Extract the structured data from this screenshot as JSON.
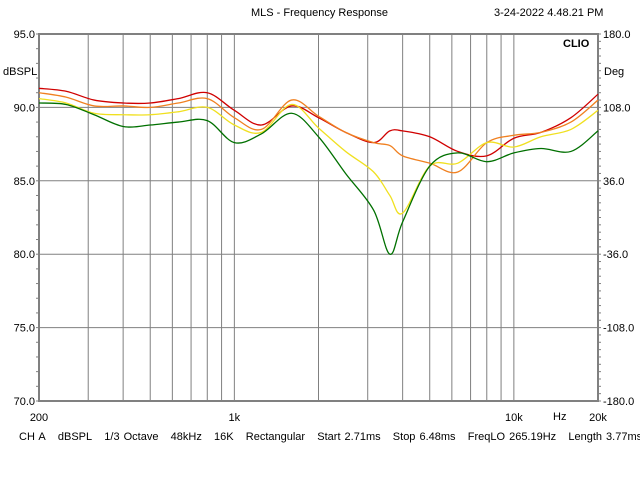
{
  "chart_data": {
    "type": "line",
    "title": "MLS - Frequency Response",
    "timestamp": "3-24-2022 4.48.21 PM",
    "brand": "CLIO",
    "xlabel": "Hz",
    "ylabel": "dBSPL",
    "ylabel_right": "Deg",
    "x_scale": "log",
    "xlim": [
      200,
      20000
    ],
    "ylim": [
      70,
      95
    ],
    "ylim_right": [
      -180,
      180
    ],
    "grid": true,
    "x_tick_labels": [
      {
        "value": 200,
        "label": "200"
      },
      {
        "value": 1000,
        "label": "1k"
      },
      {
        "value": 10000,
        "label": "10k"
      },
      {
        "value": 20000,
        "label": "20k"
      }
    ],
    "y_tick_labels": [
      "95.0",
      "90.0",
      "85.0",
      "80.0",
      "75.0",
      "70.0"
    ],
    "y_tick_values": [
      95,
      90,
      85,
      80,
      75,
      70
    ],
    "y_right_tick_labels": [
      "180.0",
      "108.0",
      "36.0",
      "-36.0",
      "-108.0",
      "-180.0"
    ],
    "x": [
      200,
      250,
      315,
      400,
      500,
      630,
      800,
      1000,
      1250,
      1600,
      2000,
      2500,
      3150,
      3600,
      4000,
      5000,
      6300,
      8000,
      10000,
      12500,
      16000,
      20000
    ],
    "series": [
      {
        "name": "red",
        "color": "#d00000",
        "values": [
          91.3,
          91.1,
          90.5,
          90.3,
          90.3,
          90.6,
          91.0,
          89.8,
          88.8,
          90.1,
          89.3,
          88.3,
          87.6,
          88.4,
          88.4,
          88.0,
          87.0,
          86.7,
          87.9,
          88.3,
          89.3,
          90.9
        ]
      },
      {
        "name": "orange",
        "color": "#f08020",
        "values": [
          91.0,
          90.7,
          90.1,
          90.1,
          90.0,
          90.3,
          90.6,
          89.3,
          88.5,
          90.5,
          89.4,
          88.3,
          87.6,
          87.4,
          86.7,
          86.2,
          85.6,
          87.6,
          88.1,
          88.3,
          89.0,
          90.5
        ]
      },
      {
        "name": "yellow",
        "color": "#f0e020",
        "values": [
          90.6,
          90.3,
          89.6,
          89.5,
          89.5,
          89.7,
          90.0,
          88.8,
          88.3,
          90.2,
          88.6,
          87.0,
          85.6,
          84.0,
          82.8,
          86.0,
          86.2,
          87.6,
          87.3,
          88.0,
          88.5,
          89.8
        ]
      },
      {
        "name": "green",
        "color": "#007000",
        "values": [
          90.3,
          90.2,
          89.5,
          88.7,
          88.8,
          89.0,
          89.1,
          87.6,
          88.2,
          89.6,
          88.0,
          85.5,
          83.0,
          80.0,
          82.2,
          86.0,
          86.9,
          86.3,
          86.9,
          87.2,
          87.0,
          88.4
        ]
      }
    ]
  },
  "footer": {
    "channel": "CH A",
    "unit": "dBSPL",
    "smoothing": "1/3 Octave",
    "sample_rate": "48kHz",
    "size": "16K",
    "window": "Rectangular",
    "start": "Start 2.71ms",
    "stop": "Stop 6.48ms",
    "freq_lo": "FreqLO 265.19Hz",
    "length": "Length 3.77ms"
  }
}
